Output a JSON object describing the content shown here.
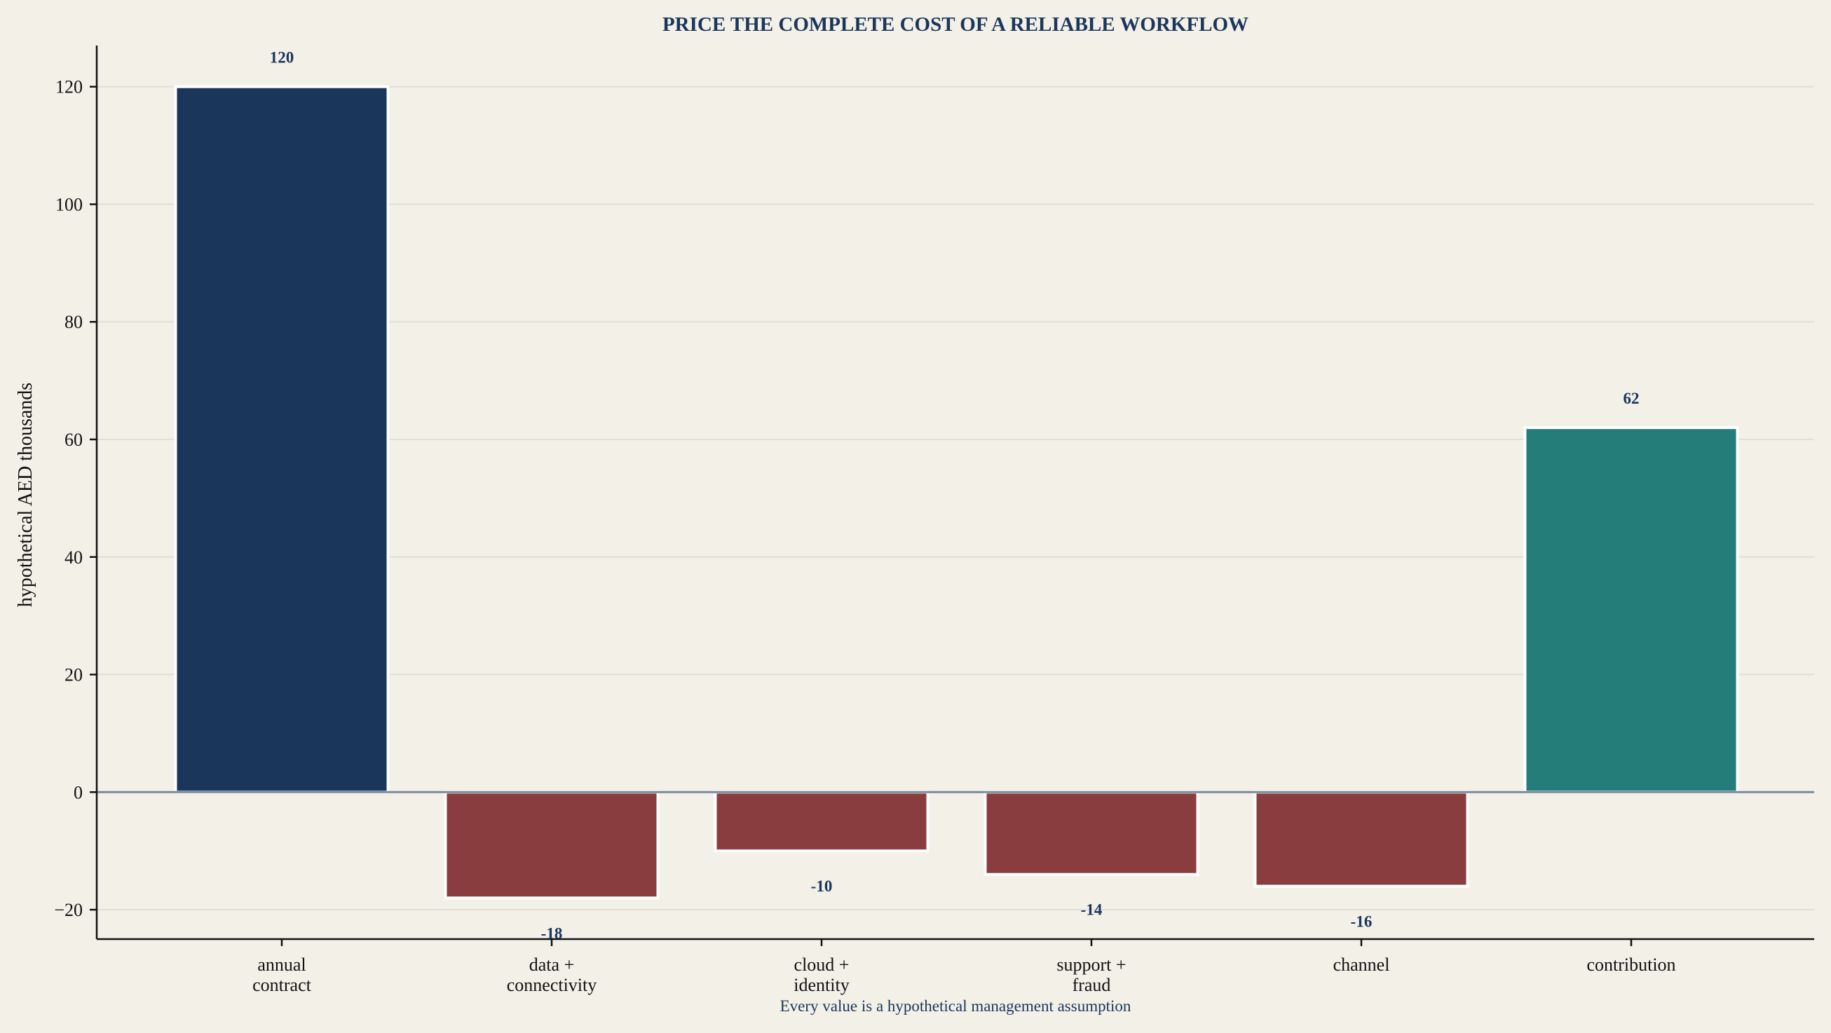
{
  "colors": {
    "background": "#f3f0e8",
    "positive_start": "#1b365b",
    "negative": "#8a3d3f",
    "total": "#247d78",
    "title": "#1b365b",
    "label": "#1b365b",
    "zero_line": "#7b8a9b",
    "grid": "#e2ded6",
    "axis": "#111111"
  },
  "chart_data": {
    "type": "bar",
    "title": "PRICE THE COMPLETE COST OF A RELIABLE WORKFLOW",
    "ylabel": "hypothetical AED thousands",
    "xlabel": "",
    "caption": "Every value is a hypothetical management assumption",
    "categories": [
      [
        "annual",
        "contract"
      ],
      [
        "data +",
        "connectivity"
      ],
      [
        "cloud +",
        "identity"
      ],
      [
        "support +",
        "fraud"
      ],
      [
        "channel"
      ],
      [
        "contribution"
      ]
    ],
    "values": [
      120,
      -18,
      -10,
      -14,
      -16,
      62
    ],
    "data_labels": [
      "120",
      "-18",
      "-10",
      "-14",
      "-16",
      "62"
    ],
    "bar_kinds": [
      "start",
      "cost",
      "cost",
      "cost",
      "cost",
      "total"
    ],
    "ylim": [
      -25,
      127
    ],
    "yticks": [
      -20,
      0,
      20,
      40,
      60,
      80,
      100,
      120
    ],
    "ytick_labels": [
      "−20",
      "0",
      "20",
      "40",
      "60",
      "80",
      "100",
      "120"
    ],
    "grid": true,
    "zero_line": true
  }
}
